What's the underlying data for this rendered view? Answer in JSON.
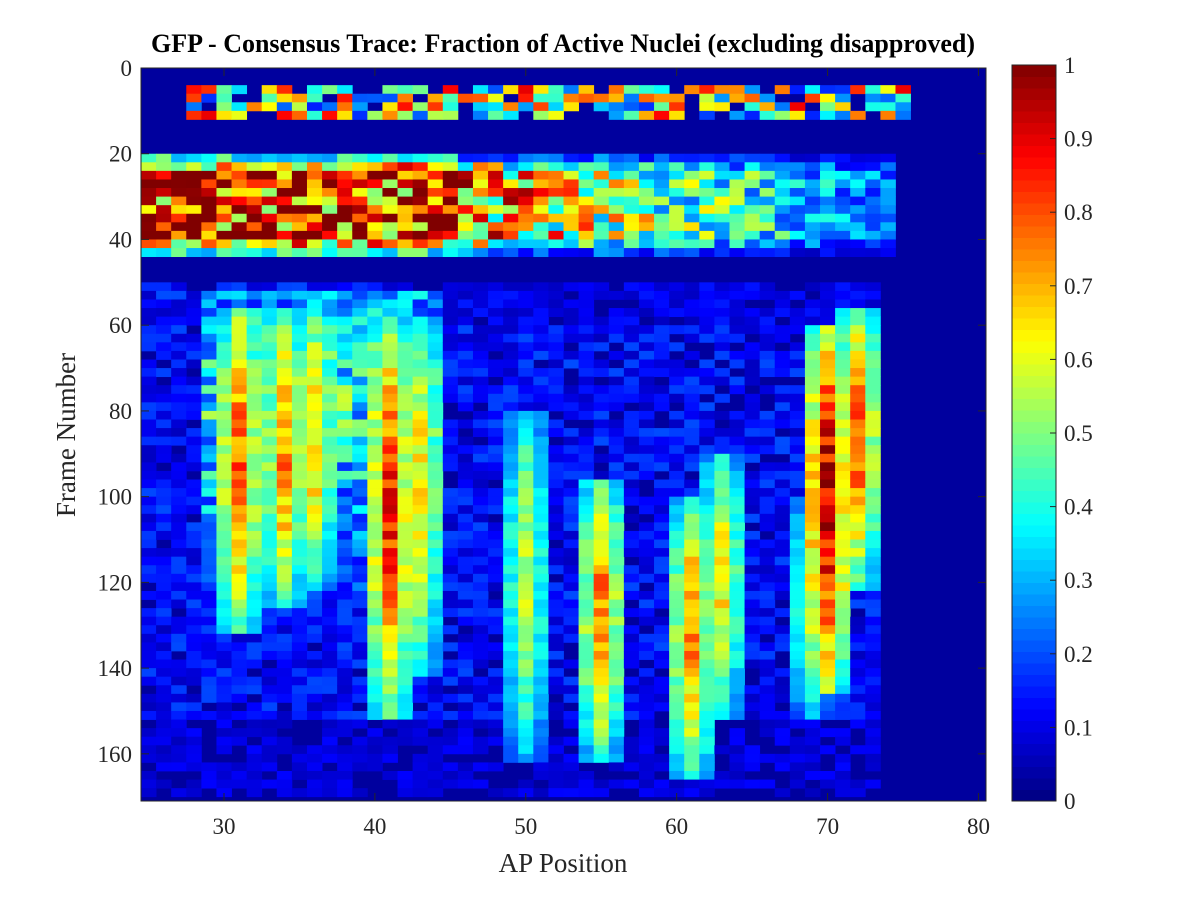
{
  "chart_data": {
    "type": "heatmap",
    "title": "GFP - Consensus Trace: Fraction of Active Nuclei (excluding disapproved)",
    "xlabel": "AP Position",
    "ylabel": "Frame Number",
    "xlim": [
      24.5,
      80.5
    ],
    "ylim": [
      0,
      171
    ],
    "y_direction": "reversed",
    "x_ticks": [
      30,
      40,
      50,
      60,
      70,
      80
    ],
    "y_ticks": [
      0,
      20,
      40,
      60,
      80,
      100,
      120,
      140,
      160
    ],
    "colormap": "jet",
    "colorbar": {
      "range": [
        0,
        1
      ],
      "ticks": [
        "0",
        "0.1",
        "0.2",
        "0.3",
        "0.4",
        "0.5",
        "0.6",
        "0.7",
        "0.8",
        "0.9",
        "1"
      ]
    },
    "row_step": 2,
    "grid": false,
    "regions_description": "Fraction of active nuclei per AP bin (columns 25-75) and frame (0-171). Band of activity frames ~3-10 across AP 28-75; strong band frames ~20-42 peaking (>0.9) at AP 25-46; broad activity frames ~50-165 with stripes near AP 31-36, 41-43, 49-51, 55, 61-63, 69-72 (AP 70 near 1.0 for frames ~60-145).",
    "stripes": [
      {
        "ap": 31,
        "f0": 55,
        "f1": 130,
        "peak": 0.85
      },
      {
        "ap": 34,
        "f0": 55,
        "f1": 125,
        "peak": 0.8
      },
      {
        "ap": 36,
        "f0": 55,
        "f1": 120,
        "peak": 0.72
      },
      {
        "ap": 41,
        "f0": 60,
        "f1": 150,
        "peak": 0.9
      },
      {
        "ap": 43,
        "f0": 60,
        "f1": 140,
        "peak": 0.7
      },
      {
        "ap": 50,
        "f0": 80,
        "f1": 160,
        "peak": 0.6
      },
      {
        "ap": 55,
        "f0": 95,
        "f1": 160,
        "peak": 0.8
      },
      {
        "ap": 61,
        "f0": 100,
        "f1": 165,
        "peak": 0.78
      },
      {
        "ap": 63,
        "f0": 90,
        "f1": 150,
        "peak": 0.68
      },
      {
        "ap": 69,
        "f0": 100,
        "f1": 150,
        "peak": 0.6
      },
      {
        "ap": 70,
        "f0": 60,
        "f1": 145,
        "peak": 1.0
      },
      {
        "ap": 72,
        "f0": 55,
        "f1": 120,
        "peak": 0.82
      }
    ],
    "bands": [
      {
        "name": "",
        "f0": 3,
        "f1": 10,
        "ap0": 28,
        "ap1": 75,
        "level": 0.45
      },
      {
        "name": "",
        "f0": 20,
        "f1": 42,
        "ap0": 25,
        "ap1": 74,
        "level": 0.7
      }
    ]
  }
}
